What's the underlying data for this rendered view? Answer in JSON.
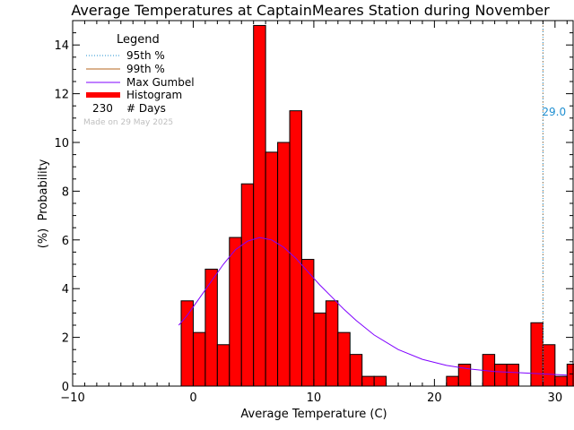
{
  "chart_data": {
    "type": "bar",
    "title": "Average Temperatures at CaptainMeares Station during November",
    "xlabel": "Average Temperature (C)",
    "ylabel_top": "Probability",
    "ylabel_bottom": "(%)",
    "xlim": [
      -10,
      31.5
    ],
    "ylim": [
      0,
      15
    ],
    "x_ticks": [
      -10,
      0,
      10,
      20,
      30
    ],
    "y_ticks": [
      0,
      2,
      4,
      6,
      8,
      10,
      12,
      14
    ],
    "bin_width": 1,
    "histogram": [
      {
        "x_start": -1,
        "value": 3.5
      },
      {
        "x_start": 0,
        "value": 2.2
      },
      {
        "x_start": 1,
        "value": 4.8
      },
      {
        "x_start": 2,
        "value": 1.7
      },
      {
        "x_start": 3,
        "value": 6.1
      },
      {
        "x_start": 4,
        "value": 8.3
      },
      {
        "x_start": 5,
        "value": 14.8
      },
      {
        "x_start": 6,
        "value": 9.6
      },
      {
        "x_start": 7,
        "value": 10.0
      },
      {
        "x_start": 8,
        "value": 11.3
      },
      {
        "x_start": 9,
        "value": 5.2
      },
      {
        "x_start": 10,
        "value": 3.0
      },
      {
        "x_start": 11,
        "value": 3.5
      },
      {
        "x_start": 12,
        "value": 2.2
      },
      {
        "x_start": 13,
        "value": 1.3
      },
      {
        "x_start": 14,
        "value": 0.4
      },
      {
        "x_start": 15,
        "value": 0.4
      },
      {
        "x_start": 21,
        "value": 0.4
      },
      {
        "x_start": 22,
        "value": 0.9
      },
      {
        "x_start": 24,
        "value": 1.3
      },
      {
        "x_start": 25,
        "value": 0.9
      },
      {
        "x_start": 26,
        "value": 0.9
      },
      {
        "x_start": 28,
        "value": 2.6
      },
      {
        "x_start": 29,
        "value": 1.7
      },
      {
        "x_start": 30,
        "value": 0.4
      },
      {
        "x_start": 31,
        "value": 0.9
      }
    ],
    "gumbel_curve": {
      "x": [
        -1.2,
        -0.5,
        0.5,
        1.5,
        2.5,
        3.5,
        4.5,
        5.5,
        6.5,
        7.5,
        8.5,
        9.5,
        10.5,
        11.5,
        12.5,
        13.5,
        15,
        17,
        19,
        21,
        23,
        25,
        27,
        29,
        31
      ],
      "y": [
        2.5,
        2.9,
        3.6,
        4.3,
        5.0,
        5.6,
        5.95,
        6.1,
        6.0,
        5.7,
        5.25,
        4.7,
        4.15,
        3.65,
        3.15,
        2.7,
        2.1,
        1.5,
        1.1,
        0.85,
        0.7,
        0.6,
        0.55,
        0.5,
        0.45
      ]
    },
    "percentile_95": {
      "x": 29.0,
      "label": "29.0"
    },
    "percentile_99": {
      "x": 29.0
    },
    "legend": {
      "title": "Legend",
      "placement": "top-left",
      "entries": [
        {
          "label": "95th %",
          "style": "dotted",
          "color": "#1f8fd1"
        },
        {
          "label": "99th %",
          "style": "solid",
          "color": "#b5651d"
        },
        {
          "label": "Max Gumbel",
          "style": "solid",
          "color": "#7f00ff"
        },
        {
          "label": "Histogram",
          "style": "thick",
          "color": "#ff0000"
        }
      ],
      "days_count": "230",
      "days_label": "# Days"
    },
    "made_on": "Made on 29 May 2025",
    "colors": {
      "histogram": "#ff0000",
      "gumbel": "#7f00ff",
      "p95": "#1f8fd1",
      "p99": "#b5651d"
    }
  }
}
